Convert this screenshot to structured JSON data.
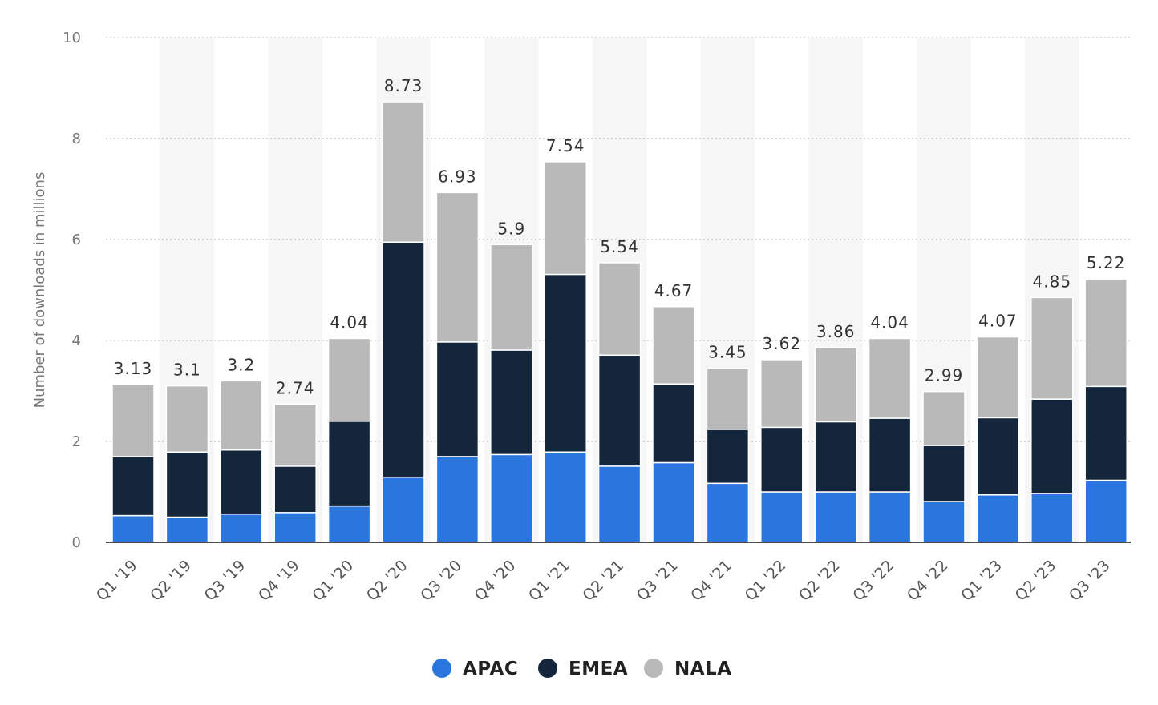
{
  "chart_data": {
    "type": "bar",
    "stacked": true,
    "ylabel": "Number of downloads in millions",
    "ylim": [
      0,
      10
    ],
    "yticks": [
      0,
      2,
      4,
      6,
      8,
      10
    ],
    "grid": true,
    "legend_position": "bottom-center",
    "categories": [
      "Q1 '19",
      "Q2 '19",
      "Q3 '19",
      "Q4 '19",
      "Q1 '20",
      "Q2 '20",
      "Q3 '20",
      "Q4 '20",
      "Q1 '21",
      "Q2 '21",
      "Q3 '21",
      "Q4 '21",
      "Q1 '22",
      "Q2 '22",
      "Q3 '22",
      "Q4 '22",
      "Q1 '23",
      "Q2 '23",
      "Q3 '23"
    ],
    "series": [
      {
        "name": "APAC",
        "color": "#2a76dd",
        "values": [
          0.53,
          0.5,
          0.56,
          0.59,
          0.72,
          1.29,
          1.7,
          1.74,
          1.79,
          1.51,
          1.58,
          1.17,
          1.0,
          1.0,
          1.0,
          0.81,
          0.94,
          0.97,
          1.23
        ]
      },
      {
        "name": "EMEA",
        "color": "#13263c",
        "values": [
          1.17,
          1.29,
          1.27,
          0.92,
          1.68,
          4.66,
          2.27,
          2.07,
          3.52,
          2.2,
          1.56,
          1.07,
          1.28,
          1.39,
          1.46,
          1.11,
          1.53,
          1.87,
          1.86
        ]
      },
      {
        "name": "NALA",
        "color": "#b9b9b9",
        "values": [
          1.43,
          1.31,
          1.37,
          1.23,
          1.64,
          2.78,
          2.96,
          2.09,
          2.23,
          1.83,
          1.53,
          1.21,
          1.34,
          1.47,
          1.58,
          1.07,
          1.6,
          2.01,
          2.13
        ]
      }
    ],
    "totals": [
      "3.13",
      "3.1",
      "3.2",
      "2.74",
      "4.04",
      "8.73",
      "6.93",
      "5.9",
      "7.54",
      "5.54",
      "4.67",
      "3.45",
      "3.62",
      "3.86",
      "4.04",
      "2.99",
      "4.07",
      "4.85",
      "5.22"
    ]
  }
}
